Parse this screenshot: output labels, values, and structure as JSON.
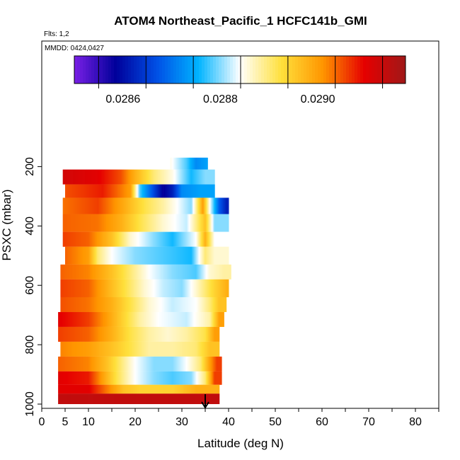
{
  "chart_data": {
    "type": "heatmap",
    "title": "ATOM4 Northeast_Pacific_1 HCFC141b_GMI",
    "annotations": {
      "flights": "Flts: 1,2",
      "dates": "MMDD: 0424,0427"
    },
    "xlabel": "Latitude (deg N)",
    "ylabel": "PSXC (mbar)",
    "xlim": [
      0,
      85
    ],
    "ylim": [
      1010,
      0
    ],
    "y_reversed": true,
    "x_ticks": [
      0,
      5,
      10,
      20,
      30,
      40,
      50,
      60,
      70,
      80
    ],
    "x_tick_labels": [
      "0",
      "5",
      "10",
      "20",
      "30",
      "40",
      "50",
      "60",
      "70",
      "80"
    ],
    "y_ticks": [
      200,
      400,
      600,
      800,
      1000
    ],
    "y_tick_labels": [
      "200",
      "400",
      "600",
      "800",
      "1000"
    ],
    "colorbar": {
      "min": 0.0285,
      "max": 0.02918,
      "ticks": [
        0.0286,
        0.0288,
        0.029
      ],
      "tick_labels": [
        "0.0286",
        "0.0288",
        "0.0290"
      ],
      "colors": [
        "#7a1fe6",
        "#00009a",
        "#0050e6",
        "#00b4ff",
        "#ffffff",
        "#ffe03c",
        "#ff9600",
        "#e60000",
        "#a01818"
      ]
    },
    "arrow_marker": {
      "x": 35,
      "label": ""
    },
    "rows": [
      {
        "p_top": 170,
        "p_bot": 210,
        "segments": [
          [
            27.5,
            0.02885
          ],
          [
            31,
            0.02878
          ],
          [
            33,
            0.02872
          ],
          [
            35.5,
            0.02874
          ]
        ]
      },
      {
        "p_top": 210,
        "p_bot": 260,
        "segments": [
          [
            4.5,
            0.02912
          ],
          [
            12,
            0.0291
          ],
          [
            17,
            0.02905
          ],
          [
            20,
            0.02898
          ],
          [
            24,
            0.0289
          ],
          [
            28,
            0.02885
          ],
          [
            32,
            0.02876
          ],
          [
            35,
            0.0288
          ],
          [
            37,
            0.0288
          ]
        ]
      },
      {
        "p_top": 260,
        "p_bot": 305,
        "segments": [
          [
            5,
            0.02905
          ],
          [
            13,
            0.02908
          ],
          [
            19,
            0.029
          ],
          [
            21,
            0.02878
          ],
          [
            26,
            0.02858
          ],
          [
            28,
            0.02862
          ],
          [
            30,
            0.02872
          ],
          [
            34,
            0.02874
          ],
          [
            37,
            0.02874
          ]
        ]
      },
      {
        "p_top": 305,
        "p_bot": 360,
        "segments": [
          [
            4.5,
            0.02903
          ],
          [
            12,
            0.02906
          ],
          [
            18,
            0.02898
          ],
          [
            22,
            0.02892
          ],
          [
            26,
            0.02888
          ],
          [
            32,
            0.0288
          ],
          [
            34.5,
            0.029
          ],
          [
            36,
            0.02884
          ],
          [
            38,
            0.02868
          ],
          [
            39.5,
            0.02862
          ],
          [
            40,
            0.02862
          ]
        ]
      },
      {
        "p_top": 360,
        "p_bot": 420,
        "segments": [
          [
            4.5,
            0.02904
          ],
          [
            12,
            0.02903
          ],
          [
            17,
            0.02898
          ],
          [
            21,
            0.02892
          ],
          [
            26,
            0.02886
          ],
          [
            31,
            0.02882
          ],
          [
            35,
            0.02896
          ],
          [
            37,
            0.0288
          ],
          [
            40,
            0.0288
          ]
        ]
      },
      {
        "p_top": 420,
        "p_bot": 470,
        "segments": [
          [
            4.5,
            0.02906
          ],
          [
            10,
            0.02904
          ],
          [
            15,
            0.02896
          ],
          [
            19,
            0.02886
          ],
          [
            24,
            0.0288
          ],
          [
            28,
            0.02876
          ],
          [
            33,
            0.02884
          ],
          [
            35,
            0.02898
          ],
          [
            37,
            0.02884
          ],
          [
            40,
            0.02884
          ]
        ]
      },
      {
        "p_top": 470,
        "p_bot": 530,
        "segments": [
          [
            5,
            0.02904
          ],
          [
            10,
            0.029
          ],
          [
            12,
            0.0289
          ],
          [
            15,
            0.02884
          ],
          [
            20,
            0.0288
          ],
          [
            26,
            0.02878
          ],
          [
            32,
            0.02876
          ],
          [
            35,
            0.0289
          ],
          [
            37,
            0.02886
          ],
          [
            40,
            0.02886
          ]
        ]
      },
      {
        "p_top": 530,
        "p_bot": 580,
        "segments": [
          [
            4,
            0.02904
          ],
          [
            10,
            0.02902
          ],
          [
            15,
            0.02896
          ],
          [
            19,
            0.0289
          ],
          [
            23,
            0.02884
          ],
          [
            28,
            0.0288
          ],
          [
            33,
            0.02878
          ],
          [
            36,
            0.02886
          ],
          [
            39,
            0.02888
          ],
          [
            40.5,
            0.02888
          ]
        ]
      },
      {
        "p_top": 580,
        "p_bot": 640,
        "segments": [
          [
            4,
            0.02906
          ],
          [
            10,
            0.02904
          ],
          [
            14,
            0.02898
          ],
          [
            18,
            0.02892
          ],
          [
            22,
            0.02886
          ],
          [
            26,
            0.02882
          ],
          [
            30,
            0.0288
          ],
          [
            34,
            0.02888
          ],
          [
            37,
            0.02894
          ],
          [
            39.5,
            0.02898
          ],
          [
            40,
            0.02898
          ]
        ]
      },
      {
        "p_top": 640,
        "p_bot": 690,
        "segments": [
          [
            4,
            0.02905
          ],
          [
            10,
            0.02903
          ],
          [
            15,
            0.02898
          ],
          [
            19,
            0.02892
          ],
          [
            23,
            0.02886
          ],
          [
            28,
            0.02882
          ],
          [
            33,
            0.02884
          ],
          [
            36,
            0.0289
          ],
          [
            38,
            0.02896
          ],
          [
            39.5,
            0.02896
          ]
        ]
      },
      {
        "p_top": 690,
        "p_bot": 740,
        "segments": [
          [
            3.5,
            0.0291
          ],
          [
            10,
            0.02906
          ],
          [
            14,
            0.029
          ],
          [
            18,
            0.02893
          ],
          [
            21,
            0.02888
          ],
          [
            25,
            0.02884
          ],
          [
            31,
            0.02882
          ],
          [
            36,
            0.02888
          ],
          [
            38,
            0.029
          ],
          [
            39,
            0.029
          ]
        ]
      },
      {
        "p_top": 740,
        "p_bot": 790,
        "segments": [
          [
            3.5,
            0.02906
          ],
          [
            10,
            0.02904
          ],
          [
            15,
            0.02898
          ],
          [
            19,
            0.02892
          ],
          [
            23,
            0.02888
          ],
          [
            27,
            0.02886
          ],
          [
            31,
            0.02888
          ],
          [
            35,
            0.02892
          ],
          [
            37,
            0.029
          ],
          [
            38,
            0.029
          ]
        ]
      },
      {
        "p_top": 790,
        "p_bot": 840,
        "segments": [
          [
            4,
            0.02902
          ],
          [
            10,
            0.029
          ],
          [
            15,
            0.02896
          ],
          [
            19,
            0.02892
          ],
          [
            23,
            0.02888
          ],
          [
            28,
            0.02888
          ],
          [
            33,
            0.0289
          ],
          [
            36,
            0.02896
          ],
          [
            38,
            0.02896
          ]
        ]
      },
      {
        "p_top": 840,
        "p_bot": 890,
        "segments": [
          [
            3.5,
            0.02904
          ],
          [
            10,
            0.02902
          ],
          [
            14,
            0.02896
          ],
          [
            17,
            0.0289
          ],
          [
            20,
            0.02884
          ],
          [
            24,
            0.0288
          ],
          [
            28,
            0.0288
          ],
          [
            31,
            0.02884
          ],
          [
            34,
            0.0289
          ],
          [
            36,
            0.029
          ],
          [
            37.5,
            0.02906
          ],
          [
            38.5,
            0.02906
          ]
        ]
      },
      {
        "p_top": 890,
        "p_bot": 935,
        "segments": [
          [
            3.5,
            0.0291
          ],
          [
            10,
            0.02908
          ],
          [
            13,
            0.029
          ],
          [
            16,
            0.02892
          ],
          [
            20,
            0.02884
          ],
          [
            24,
            0.0288
          ],
          [
            28,
            0.02878
          ],
          [
            32,
            0.0288
          ],
          [
            35,
            0.0289
          ],
          [
            37,
            0.02906
          ],
          [
            38.5,
            0.02906
          ]
        ]
      },
      {
        "p_top": 935,
        "p_bot": 965,
        "segments": [
          [
            3.5,
            0.0291
          ],
          [
            10,
            0.0291
          ],
          [
            17.5,
            0.02896
          ],
          [
            21,
            0.02894
          ],
          [
            28,
            0.02894
          ],
          [
            33,
            0.02898
          ],
          [
            38,
            0.02898
          ]
        ]
      },
      {
        "p_top": 965,
        "p_bot": 1000,
        "segments": [
          [
            3.5,
            0.02914
          ],
          [
            10,
            0.02914
          ],
          [
            20,
            0.02914
          ],
          [
            30,
            0.02914
          ],
          [
            38,
            0.02914
          ]
        ]
      }
    ]
  }
}
